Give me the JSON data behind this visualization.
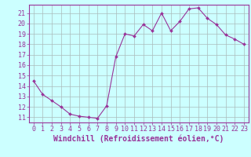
{
  "x": [
    0,
    1,
    2,
    3,
    4,
    5,
    6,
    7,
    8,
    9,
    10,
    11,
    12,
    13,
    14,
    15,
    16,
    17,
    18,
    19,
    20,
    21,
    22,
    23
  ],
  "y": [
    14.5,
    13.2,
    12.6,
    12.0,
    11.3,
    11.1,
    11.0,
    10.9,
    12.1,
    16.8,
    19.0,
    18.8,
    19.9,
    19.3,
    21.0,
    19.3,
    20.2,
    21.4,
    21.5,
    20.5,
    19.9,
    18.9,
    18.5,
    18.0
  ],
  "line_color": "#993399",
  "marker": "D",
  "marker_size": 2,
  "bg_color": "#ccffff",
  "grid_color": "#aabbbb",
  "axis_color": "#993399",
  "xlabel": "Windchill (Refroidissement éolien,°C)",
  "xlabel_fontsize": 7,
  "tick_fontsize": 6,
  "ylim": [
    10.5,
    21.8
  ],
  "xlim": [
    -0.5,
    23.5
  ],
  "yticks": [
    11,
    12,
    13,
    14,
    15,
    16,
    17,
    18,
    19,
    20,
    21
  ],
  "xticks": [
    0,
    1,
    2,
    3,
    4,
    5,
    6,
    7,
    8,
    9,
    10,
    11,
    12,
    13,
    14,
    15,
    16,
    17,
    18,
    19,
    20,
    21,
    22,
    23
  ]
}
